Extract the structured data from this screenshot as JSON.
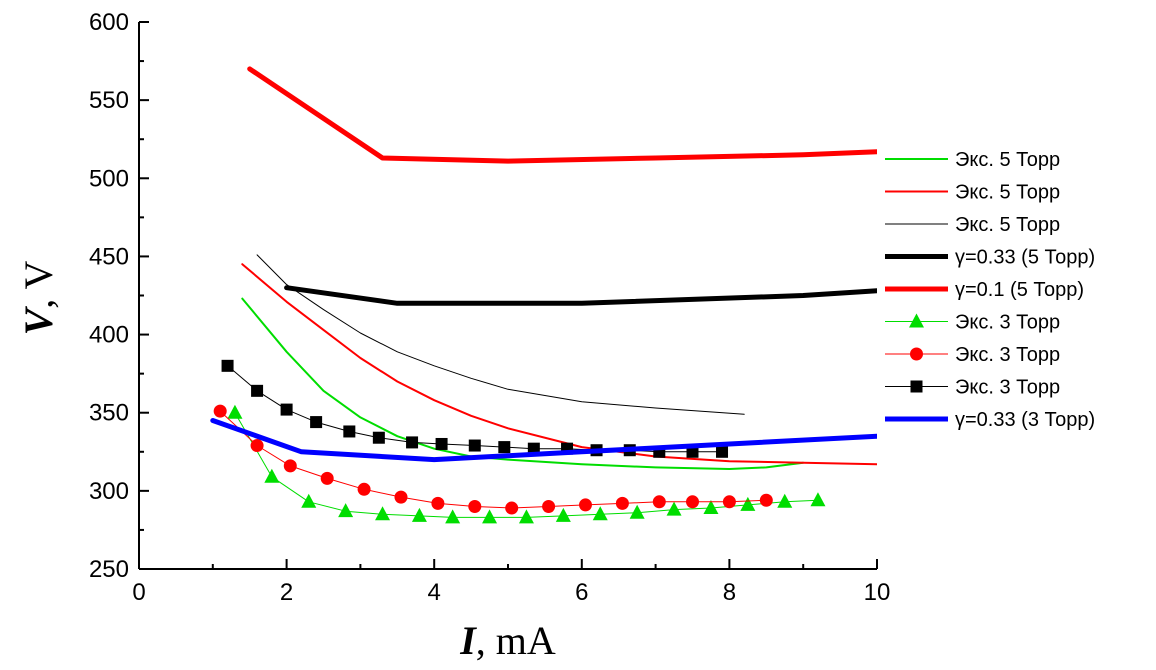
{
  "chart_data": {
    "type": "line",
    "title": "",
    "xlabel": {
      "symbol": "I",
      "unit": ", mA"
    },
    "ylabel": {
      "symbol": "V",
      "unit": ", V"
    },
    "xlim": [
      0,
      10
    ],
    "ylim": [
      250,
      600
    ],
    "xticks": [
      "0",
      "2",
      "4",
      "6",
      "8",
      "10"
    ],
    "yticks": [
      "250",
      "300",
      "350",
      "400",
      "450",
      "500",
      "550",
      "600"
    ],
    "grid": false,
    "legend_position": "right",
    "series": [
      {
        "name": "Экс. 5 Торр",
        "color": "#00dd00",
        "width": 2,
        "marker": null,
        "x": [
          1.4,
          2.0,
          2.5,
          3.0,
          3.5,
          4.0,
          4.5,
          5.0,
          6.0,
          7.0,
          8.0,
          8.5,
          9.0
        ],
        "y": [
          423,
          389,
          364,
          347,
          335,
          327,
          322,
          320,
          317,
          315,
          314,
          315,
          318
        ]
      },
      {
        "name": "Экс. 5 Торр",
        "color": "#ff0000",
        "width": 2,
        "marker": null,
        "x": [
          1.4,
          2.0,
          2.5,
          3.0,
          3.5,
          4.0,
          4.5,
          5.0,
          6.0,
          7.0,
          8.0,
          9.0,
          10.0
        ],
        "y": [
          445,
          421,
          403,
          385,
          370,
          358,
          348,
          340,
          328,
          322,
          319,
          318,
          317
        ]
      },
      {
        "name": "Экс. 5 Торр",
        "color": "#000000",
        "width": 1,
        "marker": null,
        "x": [
          1.6,
          2.0,
          2.5,
          3.0,
          3.5,
          4.0,
          4.5,
          5.0,
          6.0,
          7.0,
          8.2
        ],
        "y": [
          451,
          432,
          416,
          401,
          389,
          380,
          372,
          365,
          357,
          353,
          349
        ]
      },
      {
        "name": "γ=0.33 (5 Торр)",
        "color": "#000000",
        "width": 5,
        "marker": null,
        "x": [
          2.0,
          3.5,
          6.0,
          9.0,
          10.0
        ],
        "y": [
          430,
          420,
          420,
          425,
          428
        ]
      },
      {
        "name": "γ=0.1 (5 Торр)",
        "color": "#ff0000",
        "width": 5,
        "marker": null,
        "x": [
          1.5,
          3.3,
          5.0,
          7.0,
          9.0,
          10.0
        ],
        "y": [
          570,
          513,
          511,
          513,
          515,
          517
        ]
      },
      {
        "name": "Экс. 3 Торр",
        "color": "#00dd00",
        "width": 1,
        "marker": "triangle",
        "x": [
          1.3,
          1.8,
          2.3,
          2.8,
          3.3,
          3.8,
          4.25,
          4.75,
          5.25,
          5.75,
          6.25,
          6.75,
          7.25,
          7.75,
          8.25,
          8.75,
          9.2
        ],
        "y": [
          350,
          309,
          293,
          287,
          285,
          284,
          283,
          283,
          283,
          284,
          285,
          286,
          288,
          289,
          291,
          293,
          294
        ]
      },
      {
        "name": "Экс. 3 Торр",
        "color": "#ff0000",
        "width": 1,
        "marker": "circle",
        "x": [
          1.1,
          1.6,
          2.05,
          2.55,
          3.05,
          3.55,
          4.05,
          4.55,
          5.05,
          5.55,
          6.05,
          6.55,
          7.05,
          7.5,
          8.0,
          8.5
        ],
        "y": [
          351,
          329,
          316,
          308,
          301,
          296,
          292,
          290,
          289,
          290,
          291,
          292,
          293,
          293,
          293,
          294
        ]
      },
      {
        "name": "Экс. 3 Торр",
        "color": "#000000",
        "width": 1,
        "marker": "square",
        "x": [
          1.2,
          1.6,
          2.0,
          2.4,
          2.85,
          3.25,
          3.7,
          4.1,
          4.55,
          4.95,
          5.35,
          5.8,
          6.2,
          6.65,
          7.05,
          7.5,
          7.9
        ],
        "y": [
          380,
          364,
          352,
          344,
          338,
          334,
          331,
          330,
          329,
          328,
          327,
          327,
          326,
          326,
          325,
          325,
          325
        ]
      },
      {
        "name": "γ=0.33 (3 Торр)",
        "color": "#0000ff",
        "width": 5,
        "marker": null,
        "x": [
          1.0,
          2.2,
          4.0,
          6.0,
          8.0,
          10.0
        ],
        "y": [
          345,
          325,
          320,
          325,
          330,
          335
        ]
      }
    ]
  }
}
